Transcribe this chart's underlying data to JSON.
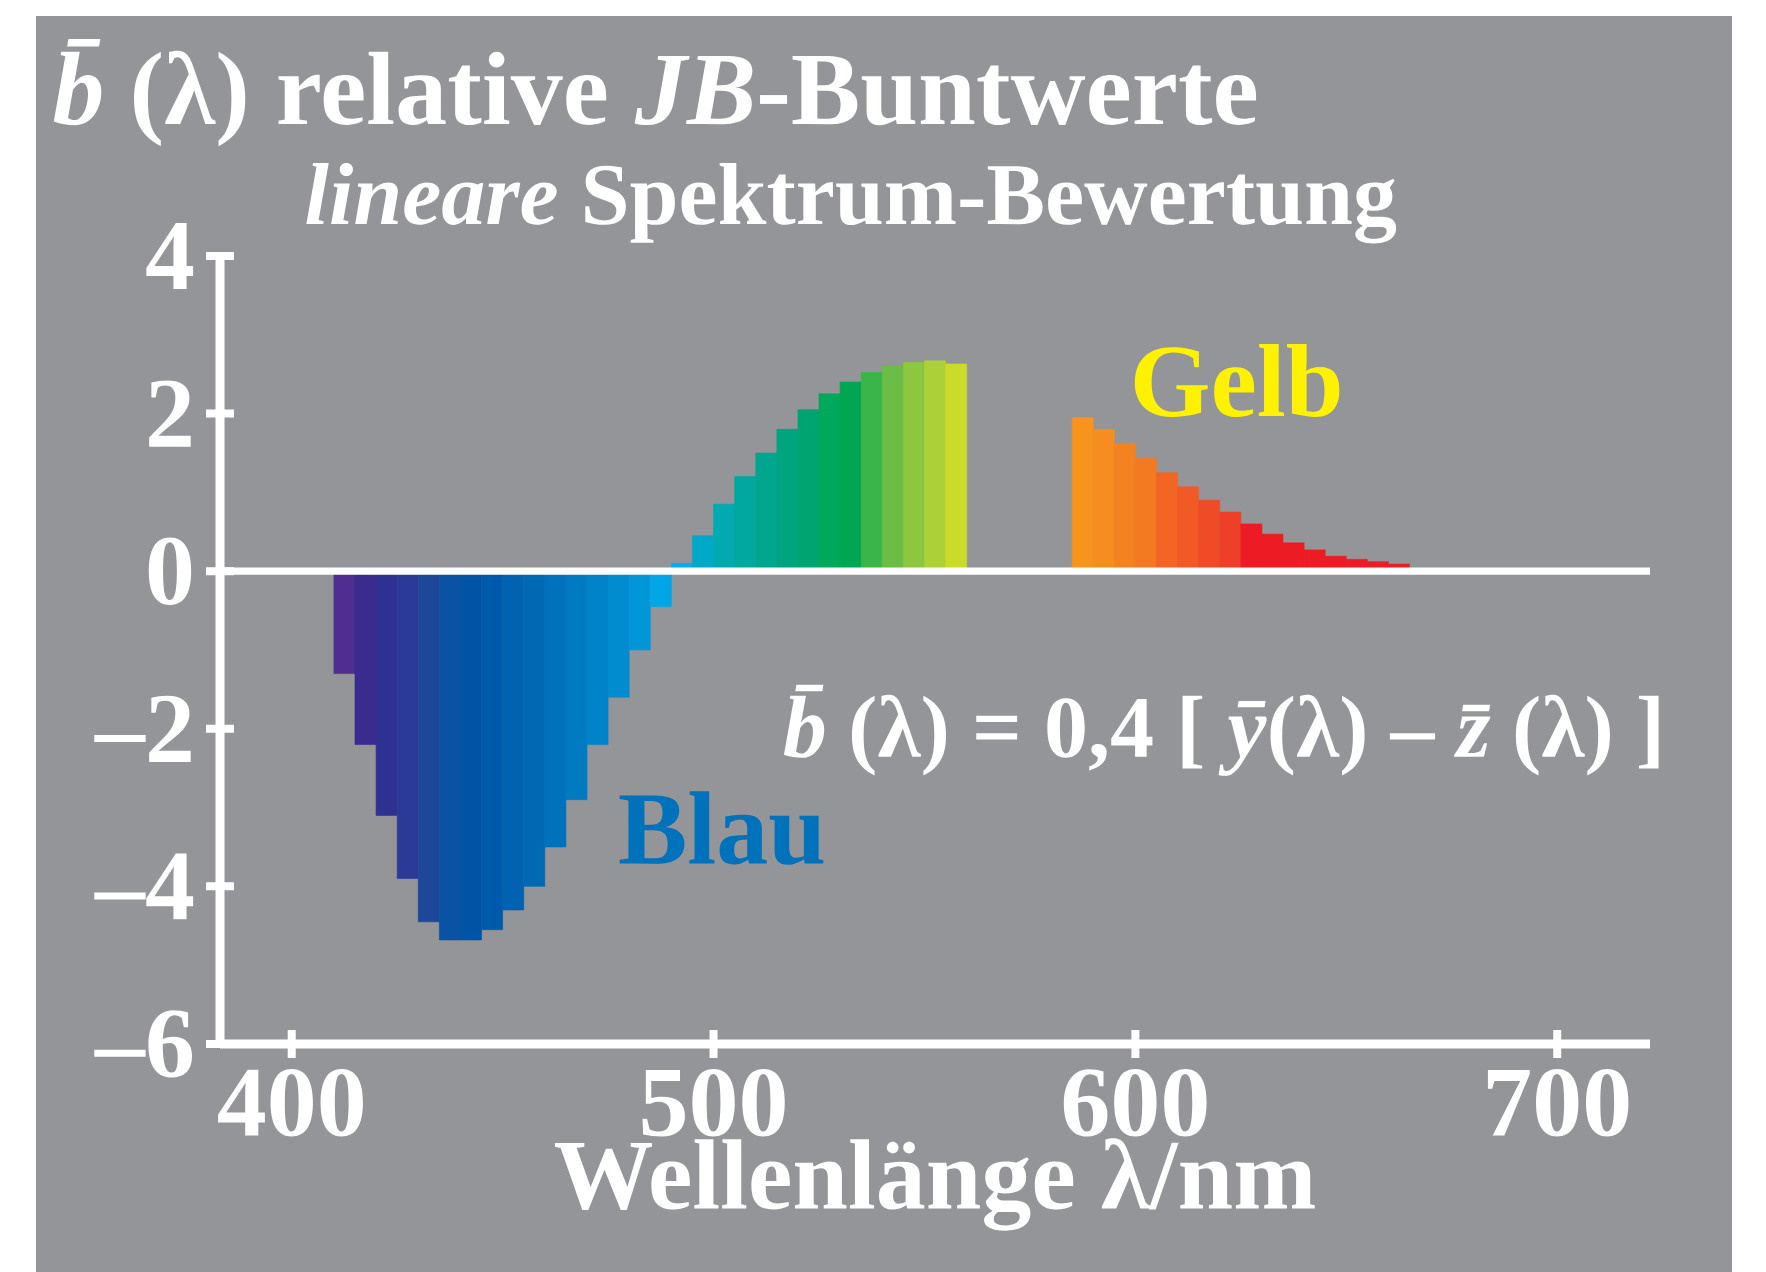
{
  "chart_data": {
    "type": "bar",
    "title": "*b̄*(λ) relative *JB*-Buntwerte",
    "subtitle": "*lineare* Spektrum-Bewertung",
    "xlabel": "Wellenlänge λ/nm",
    "x": [
      412.5,
      417.5,
      422.5,
      427.5,
      432.5,
      437.5,
      442.5,
      447.5,
      452.5,
      457.5,
      462.5,
      467.5,
      472.5,
      477.5,
      482.5,
      487.5,
      492.5,
      497.5,
      502.5,
      507.5,
      512.5,
      517.5,
      522.5,
      527.5,
      532.5,
      537.5,
      542.5,
      547.5,
      552.5,
      557.5,
      587.5,
      592.5,
      597.5,
      602.5,
      607.5,
      612.5,
      617.5,
      622.5,
      627.5,
      632.5,
      637.5,
      642.5,
      647.5,
      652.5,
      657.5,
      662.5
    ],
    "values": [
      -1.3,
      -2.2,
      -3.1,
      -3.9,
      -4.45,
      -4.68,
      -4.68,
      -4.55,
      -4.3,
      -4.0,
      -3.5,
      -2.9,
      -2.2,
      -1.6,
      -1.0,
      -0.45,
      0.1,
      0.45,
      0.85,
      1.2,
      1.5,
      1.8,
      2.05,
      2.25,
      2.4,
      2.52,
      2.6,
      2.65,
      2.67,
      2.63,
      1.95,
      1.8,
      1.62,
      1.43,
      1.25,
      1.07,
      0.9,
      0.75,
      0.6,
      0.47,
      0.36,
      0.27,
      0.19,
      0.15,
      0.12,
      0.09
    ],
    "colors": [
      "#4f2d91",
      "#3a2c8e",
      "#2e3191",
      "#2b3a96",
      "#1e4699",
      "#0a52a3",
      "#0054a6",
      "#005aab",
      "#0062b0",
      "#0069b4",
      "#0072bb",
      "#007bc2",
      "#0083c8",
      "#008ccf",
      "#0097d9",
      "#00a6e6",
      "#00aeef",
      "#00a9c8",
      "#00aab0",
      "#00a89d",
      "#00a68e",
      "#00a580",
      "#00a470",
      "#00a85a",
      "#00a651",
      "#3ab54a",
      "#6bbd45",
      "#8dc63f",
      "#acd037",
      "#cbdb2a",
      "#f7941d",
      "#f68e1f",
      "#f58220",
      "#f37a21",
      "#f26522",
      "#f15a24",
      "#ef4b26",
      "#ee4028",
      "#ed1c24",
      "#ed1c24",
      "#ed1c24",
      "#ed1c24",
      "#ed1c24",
      "#ec1c24",
      "#ec1c24",
      "#ec1c24"
    ],
    "xlim": [
      383,
      722
    ],
    "ylim": [
      -6,
      4
    ],
    "xticks": [
      400,
      500,
      600,
      700
    ],
    "yticks": [
      {
        "value": -6,
        "label": "–6"
      },
      {
        "value": -4,
        "label": "–4"
      },
      {
        "value": -2,
        "label": "–2"
      },
      0,
      2,
      4
    ],
    "ref_lines": [
      {
        "axis": "y",
        "value": 0,
        "color": "#ffffff"
      }
    ],
    "annotations": [
      "Gelb",
      "*b̄*(λ) = 0,4 [ *ȳ*(λ) – *z̄*(λ) ]",
      "Blau"
    ]
  }
}
